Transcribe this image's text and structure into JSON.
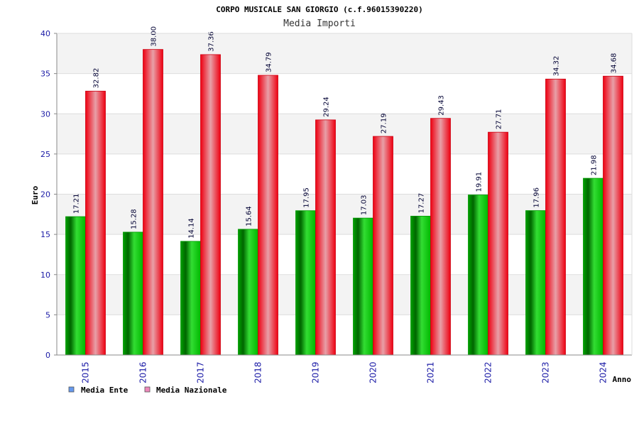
{
  "chart_data": {
    "type": "bar",
    "title": "CORPO MUSICALE SAN GIORGIO (c.f.96015390220)",
    "subtitle": "Media Importi",
    "xlabel": "Anno",
    "ylabel": "Euro",
    "ylim": [
      0,
      40
    ],
    "ytick_step": 5,
    "grid": true,
    "legend_position": "bottom-left",
    "categories": [
      "2015",
      "2016",
      "2017",
      "2018",
      "2019",
      "2020",
      "2021",
      "2022",
      "2023",
      "2024"
    ],
    "series": [
      {
        "name": "Media Ente",
        "values": [
          17.21,
          15.28,
          14.14,
          15.64,
          17.95,
          17.03,
          17.27,
          19.91,
          17.96,
          21.98
        ],
        "labels": [
          "17.21",
          "15.28",
          "14.14",
          "15.64",
          "17.95",
          "17.03",
          "17.27",
          "19.91",
          "17.96",
          "21.98"
        ],
        "color": "#00c000",
        "legend_color": "#6699ee"
      },
      {
        "name": "Media Nazionale",
        "values": [
          32.82,
          38.0,
          37.36,
          34.79,
          29.24,
          27.19,
          29.43,
          27.71,
          34.32,
          34.68
        ],
        "labels": [
          "32.82",
          "38.00",
          "37.36",
          "34.79",
          "29.24",
          "27.19",
          "29.43",
          "27.71",
          "34.32",
          "34.68"
        ],
        "color": "#ee1122",
        "legend_color": "#ee88bb"
      }
    ]
  }
}
